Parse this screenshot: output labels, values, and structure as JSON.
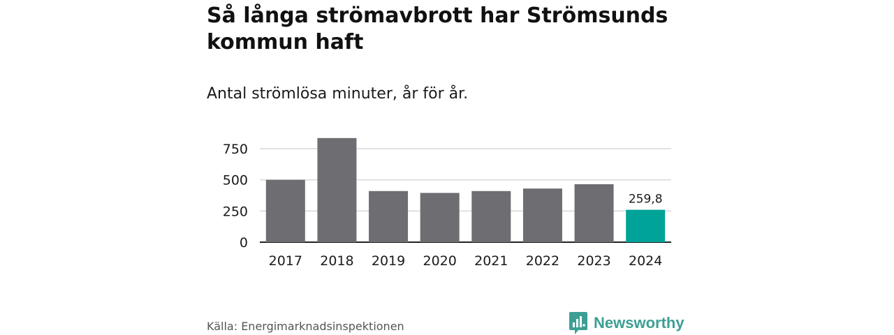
{
  "title": "Så långa strömavbrott har Strömsunds kommun haft",
  "subtitle": "Antal strömlösa minuter, år för år.",
  "source": "Källa: Energimarknadsinspektionen",
  "brand": {
    "name": "Newsworthy",
    "icon": "newsworthy-logo-icon",
    "color": "#3c9f94"
  },
  "chart_data": {
    "type": "bar",
    "categories": [
      "2017",
      "2018",
      "2019",
      "2020",
      "2021",
      "2022",
      "2023",
      "2024"
    ],
    "values": [
      500,
      835,
      410,
      395,
      410,
      430,
      465,
      259.8
    ],
    "ylim": [
      0,
      900
    ],
    "yticks": [
      0,
      250,
      500,
      750
    ],
    "ytick_labels": [
      "0",
      "250",
      "500",
      "750"
    ],
    "grid": true,
    "colors": {
      "default": "#6e6d72",
      "highlight": "#00a398"
    },
    "highlight_index": 7,
    "data_labels": [
      {
        "index": 7,
        "text": "259,8"
      }
    ]
  }
}
